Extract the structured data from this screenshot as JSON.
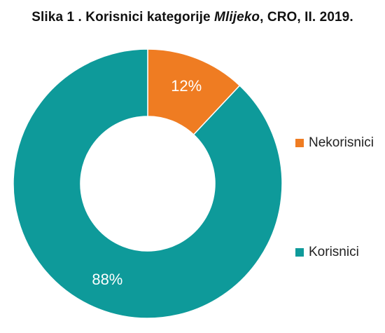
{
  "title": {
    "prefix": "Slika 1 . Korisnici kategorije ",
    "emphasis": "Mlijeko",
    "suffix": ", CRO, II. 2019."
  },
  "chart_data": {
    "type": "pie",
    "categories": [
      "Nekorisnici",
      "Korisnici"
    ],
    "values": [
      12,
      88
    ],
    "data_labels": [
      "12%",
      "88%"
    ],
    "colors": [
      "#ef7c22",
      "#0e9a9a"
    ],
    "donut": true,
    "legend_position": "right"
  }
}
